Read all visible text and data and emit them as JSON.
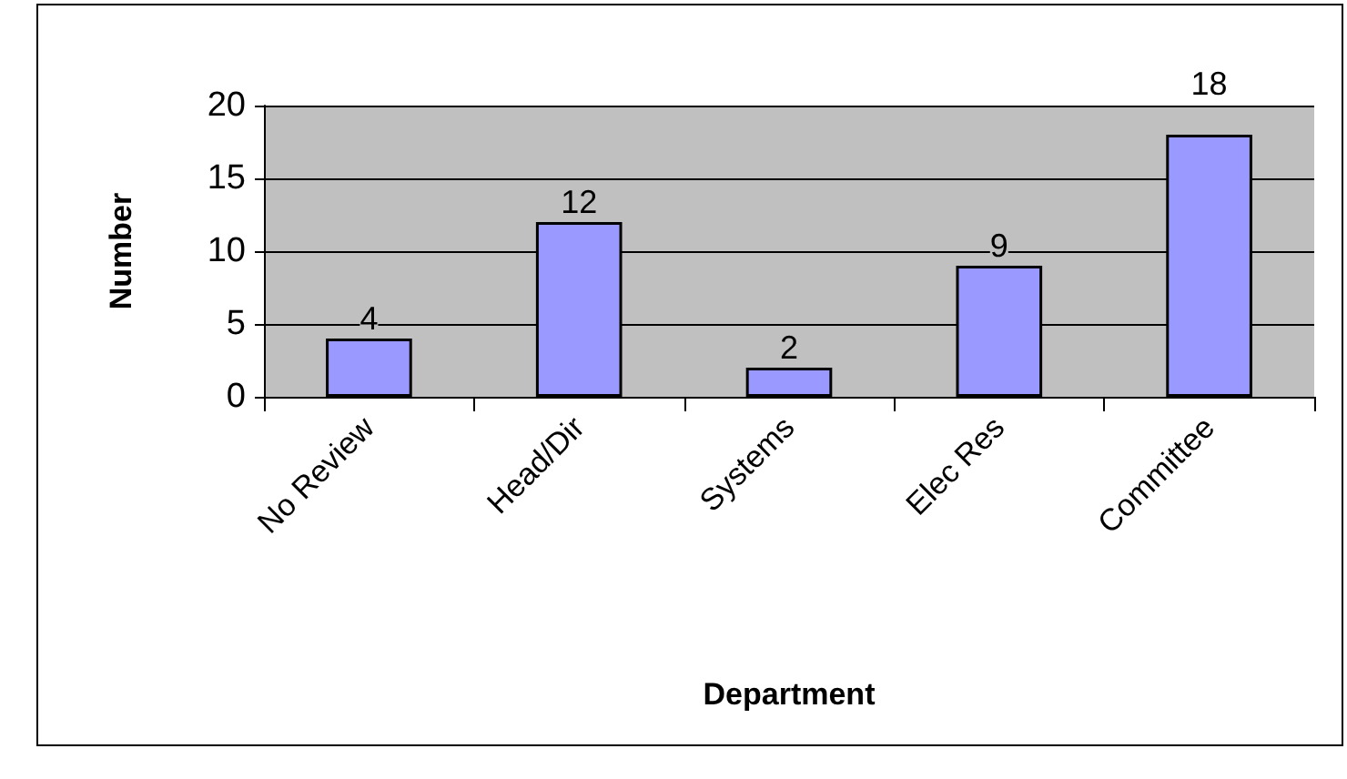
{
  "chart_data": {
    "type": "bar",
    "xlabel": "Department",
    "ylabel": "Number",
    "categories": [
      "No Review",
      "Head/Dir",
      "Systems",
      "Elec Res",
      "Committee"
    ],
    "values": [
      4,
      12,
      2,
      9,
      18
    ],
    "color": "#9999ff",
    "ylim": [
      0,
      20
    ],
    "yticks": [
      0,
      5,
      10,
      15,
      20
    ],
    "grid": "y",
    "data_labels": true
  }
}
